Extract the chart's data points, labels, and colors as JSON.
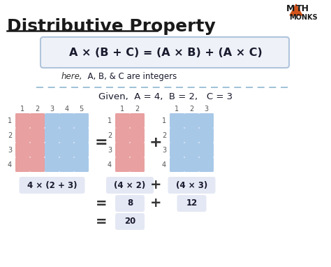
{
  "title": "Distributive Property",
  "formula": "A × (B + C) = (A × B) + (A × C)",
  "here_italic": "here,",
  "here_rest": "  A, B, & C are integers",
  "given_text": "Given,  A = 4,  B = 2,   C = 3",
  "label_left": "4 × (2 + 3)",
  "label_mid": "(4 × 2)",
  "label_right": "(4 × 3)",
  "eq1_left": "8",
  "eq1_right": "12",
  "eq2": "20",
  "pink_color": "#E8A0A0",
  "blue_color": "#A8C8E8",
  "box_bg": "#EEF2F8",
  "label_bg": "#E4E8F4",
  "dashed_color": "#7AAAC8",
  "bg_color": "#FFFFFF",
  "logo_triangle_color": "#D4541A",
  "text_dark": "#1a1a2e",
  "A": 4,
  "B": 2,
  "C": 3
}
